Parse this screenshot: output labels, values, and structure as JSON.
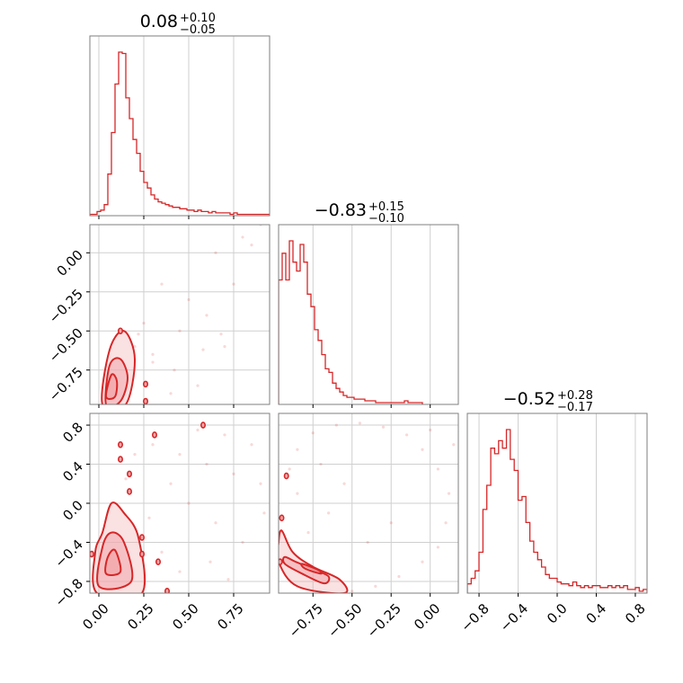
{
  "chart_data": {
    "type": "corner",
    "color": "#d62728",
    "fill_color": "#f2a8ab",
    "titles": [
      {
        "median": "0.08",
        "plus": "+0.10",
        "minus": "−0.05"
      },
      {
        "median": "−0.83",
        "plus": "+0.15",
        "minus": "−0.10"
      },
      {
        "median": "−0.52",
        "plus": "+0.28",
        "minus": "−0.17"
      }
    ],
    "params": [
      {
        "range": [
          -0.05,
          0.95
        ],
        "ticks": [
          0.0,
          0.25,
          0.5,
          0.75
        ],
        "tick_labels": [
          "0.00",
          "0.25",
          "0.50",
          "0.75"
        ]
      },
      {
        "range": [
          -0.97,
          0.18
        ],
        "ticks": [
          -0.75,
          -0.5,
          -0.25,
          0.0
        ],
        "tick_labels": [
          "−0.75",
          "−0.50",
          "−0.25",
          "0.00"
        ]
      },
      {
        "range": [
          -0.92,
          0.92
        ],
        "ticks": [
          -0.8,
          -0.4,
          0.0,
          0.4,
          0.8
        ],
        "tick_labels": [
          "−0.8",
          "−0.4",
          "0.0",
          "0.4",
          "0.8"
        ]
      }
    ],
    "histograms": [
      {
        "edges_start": -0.05,
        "bin_width": 0.02,
        "counts": [
          1,
          1,
          3,
          4,
          8,
          30,
          60,
          95,
          118,
          117,
          85,
          70,
          55,
          45,
          32,
          24,
          20,
          15,
          12,
          10,
          9,
          8,
          7,
          6,
          6,
          5,
          5,
          4,
          4,
          3,
          4,
          3,
          3,
          2,
          3,
          2,
          2,
          2,
          2,
          1,
          2,
          1,
          1,
          1,
          1,
          1,
          1,
          1,
          1,
          1
        ]
      },
      {
        "edges_start": -0.97,
        "bin_width": 0.023,
        "counts": [
          70,
          85,
          70,
          92,
          80,
          75,
          90,
          80,
          62,
          55,
          42,
          36,
          28,
          20,
          18,
          12,
          9,
          7,
          5,
          4,
          4,
          3,
          3,
          3,
          2,
          2,
          2,
          1,
          1,
          1,
          1,
          1,
          1,
          1,
          1,
          2,
          1,
          1,
          1,
          1
        ]
      },
      {
        "edges_start": -0.92,
        "bin_width": 0.04,
        "counts": [
          5,
          8,
          12,
          22,
          45,
          58,
          78,
          75,
          82,
          78,
          88,
          72,
          66,
          50,
          52,
          38,
          28,
          22,
          18,
          14,
          10,
          8,
          8,
          6,
          5,
          5,
          4,
          6,
          4,
          3,
          4,
          3,
          4,
          4,
          3,
          3,
          4,
          3,
          4,
          3,
          4,
          2,
          2,
          3,
          1,
          2
        ]
      }
    ],
    "pairs": [
      {
        "x_param": 0,
        "y_param": 1,
        "levels": [
          {
            "role": "outer",
            "points": [
              [
                0.02,
                -0.97
              ],
              [
                0.06,
                -0.62
              ],
              [
                0.14,
                -0.5
              ],
              [
                0.2,
                -0.68
              ],
              [
                0.15,
                -0.97
              ]
            ]
          },
          {
            "role": "middle",
            "points": [
              [
                0.04,
                -0.97
              ],
              [
                0.06,
                -0.72
              ],
              [
                0.12,
                -0.68
              ],
              [
                0.16,
                -0.8
              ],
              [
                0.12,
                -0.95
              ]
            ]
          },
          {
            "role": "inner",
            "points": [
              [
                0.04,
                -0.92
              ],
              [
                0.07,
                -0.78
              ],
              [
                0.1,
                -0.82
              ],
              [
                0.09,
                -0.92
              ]
            ]
          }
        ],
        "isolated_contours": [
          [
            0.12,
            -0.5
          ],
          [
            0.26,
            -0.84
          ],
          [
            0.26,
            -0.95
          ]
        ],
        "scatter": [
          [
            0.2,
            -0.6
          ],
          [
            0.3,
            -0.7
          ],
          [
            0.45,
            -0.5
          ],
          [
            0.5,
            -0.3
          ],
          [
            0.6,
            -0.4
          ],
          [
            0.7,
            -0.6
          ],
          [
            0.35,
            -0.2
          ],
          [
            0.8,
            0.1
          ],
          [
            0.65,
            0.0
          ],
          [
            0.55,
            -0.85
          ],
          [
            0.4,
            -0.9
          ],
          [
            0.25,
            -0.45
          ],
          [
            0.9,
            0.18
          ],
          [
            0.75,
            -0.2
          ],
          [
            0.3,
            -0.65
          ],
          [
            0.42,
            -0.75
          ],
          [
            0.58,
            -0.62
          ],
          [
            0.68,
            -0.52
          ],
          [
            0.22,
            -0.52
          ],
          [
            0.85,
            0.05
          ]
        ]
      },
      {
        "x_param": 0,
        "y_param": 2,
        "levels": [
          {
            "role": "outer",
            "points": [
              [
                -0.01,
                -0.92
              ],
              [
                -0.02,
                -0.5
              ],
              [
                0.02,
                -0.3
              ],
              [
                0.07,
                0.0
              ],
              [
                0.14,
                -0.1
              ],
              [
                0.22,
                -0.35
              ],
              [
                0.24,
                -0.92
              ]
            ]
          },
          {
            "role": "middle",
            "points": [
              [
                0.0,
                -0.85
              ],
              [
                0.02,
                -0.45
              ],
              [
                0.07,
                -0.3
              ],
              [
                0.14,
                -0.4
              ],
              [
                0.18,
                -0.8
              ]
            ]
          },
          {
            "role": "inner",
            "points": [
              [
                0.04,
                -0.72
              ],
              [
                0.05,
                -0.55
              ],
              [
                0.09,
                -0.48
              ],
              [
                0.12,
                -0.7
              ]
            ]
          }
        ],
        "isolated_contours": [
          [
            0.12,
            0.45
          ],
          [
            0.12,
            0.6
          ],
          [
            0.17,
            0.3
          ],
          [
            0.17,
            0.12
          ],
          [
            0.24,
            -0.35
          ],
          [
            0.24,
            -0.52
          ],
          [
            0.33,
            -0.6
          ],
          [
            0.38,
            -0.9
          ],
          [
            0.58,
            0.8
          ],
          [
            0.31,
            0.7
          ],
          [
            -0.04,
            -0.52
          ]
        ],
        "scatter": [
          [
            0.3,
            0.6
          ],
          [
            0.45,
            0.5
          ],
          [
            0.6,
            0.4
          ],
          [
            0.75,
            0.3
          ],
          [
            0.5,
            0.0
          ],
          [
            0.65,
            -0.2
          ],
          [
            0.8,
            -0.4
          ],
          [
            0.35,
            -0.5
          ],
          [
            0.45,
            -0.7
          ],
          [
            0.7,
            0.7
          ],
          [
            0.9,
            0.2
          ],
          [
            0.2,
            0.5
          ],
          [
            0.55,
            0.75
          ],
          [
            0.85,
            0.6
          ],
          [
            0.4,
            0.2
          ],
          [
            0.62,
            -0.6
          ],
          [
            0.72,
            -0.78
          ],
          [
            0.28,
            -0.15
          ],
          [
            0.92,
            -0.1
          ],
          [
            0.15,
            0.25
          ]
        ]
      },
      {
        "x_param": 1,
        "y_param": 2,
        "levels": [
          {
            "role": "outer",
            "points": [
              [
                -0.97,
                -0.4
              ],
              [
                -0.95,
                -0.28
              ],
              [
                -0.88,
                -0.5
              ],
              [
                -0.75,
                -0.65
              ],
              [
                -0.58,
                -0.78
              ],
              [
                -0.55,
                -0.92
              ],
              [
                -0.85,
                -0.85
              ],
              [
                -0.97,
                -0.6
              ]
            ]
          },
          {
            "role": "middle",
            "points": [
              [
                -0.93,
                -0.55
              ],
              [
                -0.86,
                -0.6
              ],
              [
                -0.74,
                -0.68
              ],
              [
                -0.65,
                -0.75
              ],
              [
                -0.68,
                -0.82
              ],
              [
                -0.82,
                -0.72
              ],
              [
                -0.93,
                -0.62
              ]
            ]
          },
          {
            "role": "inner",
            "points": [
              [
                -0.82,
                -0.62
              ],
              [
                -0.72,
                -0.68
              ],
              [
                -0.7,
                -0.72
              ],
              [
                -0.8,
                -0.67
              ]
            ]
          }
        ],
        "isolated_contours": [
          [
            -0.95,
            -0.15
          ],
          [
            -0.92,
            0.28
          ],
          [
            -0.96,
            -0.6
          ]
        ],
        "scatter": [
          [
            -0.9,
            0.35
          ],
          [
            -0.85,
            0.55
          ],
          [
            -0.75,
            0.72
          ],
          [
            -0.6,
            0.8
          ],
          [
            -0.45,
            0.82
          ],
          [
            -0.3,
            0.78
          ],
          [
            -0.15,
            0.7
          ],
          [
            -0.05,
            0.55
          ],
          [
            0.05,
            0.35
          ],
          [
            0.12,
            0.1
          ],
          [
            0.1,
            -0.2
          ],
          [
            0.05,
            -0.45
          ],
          [
            -0.05,
            -0.6
          ],
          [
            -0.2,
            -0.75
          ],
          [
            -0.35,
            -0.85
          ],
          [
            -0.5,
            -0.9
          ],
          [
            -0.85,
            0.1
          ],
          [
            -0.78,
            -0.3
          ],
          [
            -0.65,
            -0.1
          ],
          [
            -0.55,
            0.2
          ],
          [
            -0.7,
            0.4
          ],
          [
            -0.4,
            -0.4
          ],
          [
            0.0,
            0.75
          ],
          [
            0.15,
            0.6
          ],
          [
            -0.25,
            -0.2
          ]
        ]
      }
    ]
  }
}
